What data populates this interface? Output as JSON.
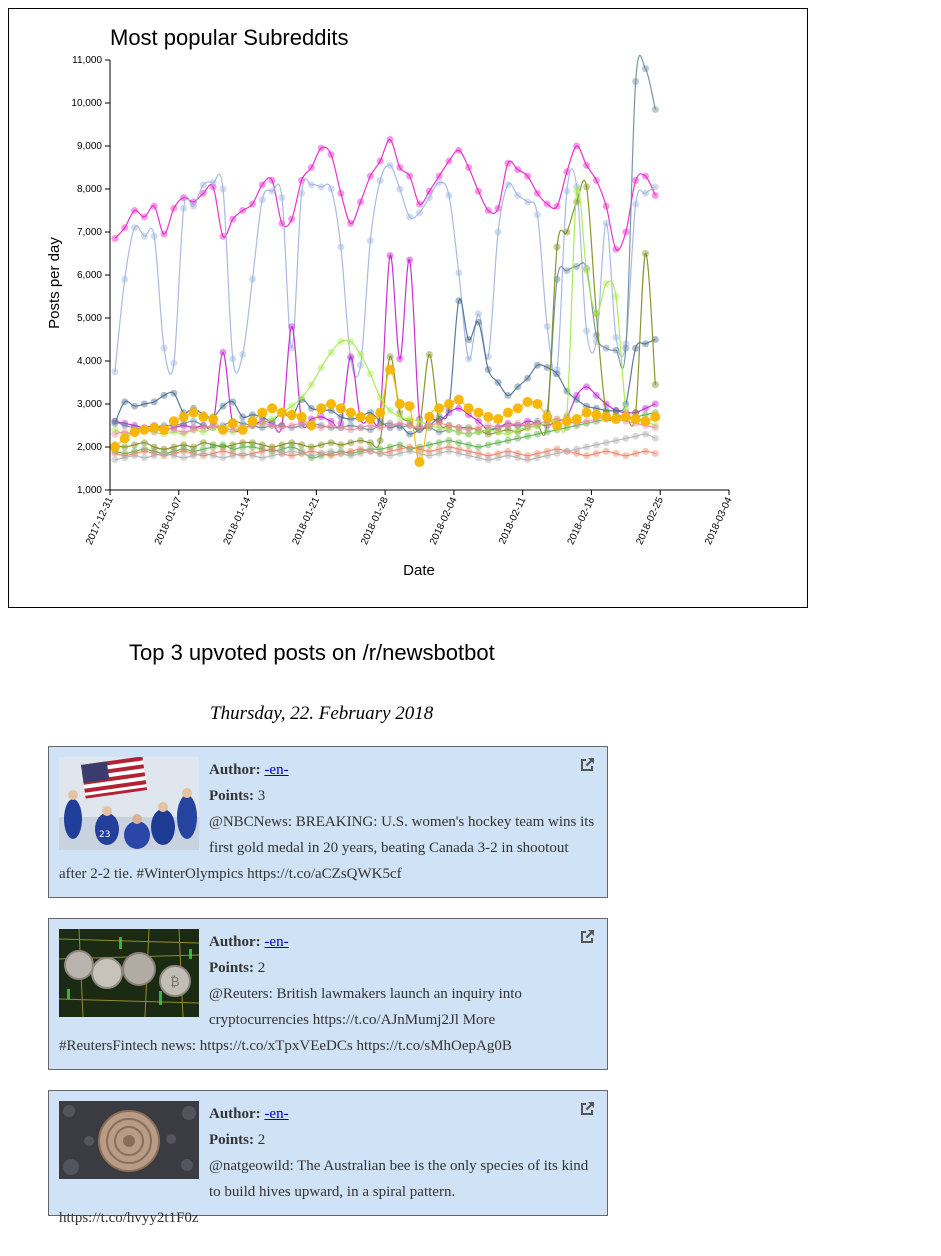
{
  "chart_data": {
    "type": "line",
    "title": "Most popular Subreddits",
    "xlabel": "Date",
    "ylabel": "Posts per day",
    "ylim": [
      1000,
      11000
    ],
    "y_ticks": [
      "1,000",
      "2,000",
      "3,000",
      "4,000",
      "5,000",
      "6,000",
      "7,000",
      "8,000",
      "9,000",
      "10,000",
      "11,000"
    ],
    "x_ticks": [
      "2017-12-31",
      "2018-01-07",
      "2018-01-14",
      "2018-01-21",
      "2018-01-28",
      "2018-02-04",
      "2018-02-11",
      "2018-02-18",
      "2018-02-25",
      "2018-03-04"
    ],
    "x_start": "2017-12-31",
    "series": [
      {
        "color": "#e81ec8",
        "values": [
          6850,
          7100,
          7500,
          7350,
          7600,
          6950,
          7550,
          7800,
          7700,
          7900,
          8050,
          6900,
          7300,
          7500,
          7650,
          8100,
          8200,
          7200,
          7300,
          8200,
          8500,
          8950,
          8800,
          7900,
          7200,
          7700,
          8300,
          8650,
          9150,
          8500,
          8300,
          7650,
          7950,
          8300,
          8650,
          8900,
          8500,
          7950,
          7500,
          7550,
          8600,
          8450,
          8300,
          7900,
          7650,
          7600,
          8400,
          9000,
          8550,
          8200,
          7600,
          6600,
          7000,
          8200,
          8300,
          7850
        ]
      },
      {
        "color": "#9eb4e0",
        "values": [
          3750,
          5900,
          7100,
          6900,
          6900,
          4300,
          3950,
          7550,
          7600,
          8100,
          8150,
          8000,
          4050,
          4150,
          5900,
          7750,
          7950,
          7800,
          4300,
          7900,
          8100,
          8050,
          8000,
          6650,
          4050,
          3900,
          6800,
          8200,
          8550,
          8000,
          7350,
          7450,
          7800,
          8150,
          7850,
          6050,
          4050,
          5100,
          4100,
          7000,
          8100,
          7850,
          7700,
          7400,
          4800,
          3800,
          7950,
          8050,
          4700,
          4450,
          7200,
          4550,
          4400,
          7650,
          7900,
          8050
        ]
      },
      {
        "color": "#c41bd0",
        "values": [
          2600,
          2550,
          2500,
          2450,
          2500,
          2400,
          2450,
          2500,
          2450,
          2500,
          2550,
          4200,
          2500,
          2450,
          2500,
          2600,
          2550,
          2500,
          4800,
          2600,
          2650,
          2700,
          2600,
          2550,
          4100,
          2650,
          2700,
          2800,
          6450,
          4050,
          6350,
          2650,
          2700,
          2600,
          2800,
          2900,
          2750,
          2600,
          2400,
          2450,
          2550,
          2500,
          2600,
          2550,
          2500,
          2600,
          2700,
          3200,
          3400,
          3200,
          3000,
          2850,
          2800,
          2800,
          2900,
          3000
        ]
      },
      {
        "color": "#4a6d90",
        "values": [
          2550,
          3050,
          2950,
          3000,
          3050,
          3200,
          3250,
          2800,
          2900,
          2750,
          2700,
          2950,
          3050,
          2700,
          2750,
          2700,
          2600,
          2800,
          2700,
          3100,
          2900,
          2850,
          2850,
          2700,
          2650,
          2700,
          2800,
          2600,
          2450,
          2500,
          2300,
          2400,
          2500,
          2700,
          2900,
          5400,
          4500,
          4900,
          3800,
          3500,
          3200,
          3400,
          3600,
          3900,
          3850,
          3700,
          3300,
          3100,
          2950,
          2900,
          2850,
          2850,
          3000,
          4300,
          4400,
          4500
        ]
      },
      {
        "color": "#6b8aa0",
        "values": [
          2600,
          2500,
          2450,
          2400,
          2450,
          2500,
          2500,
          2550,
          2600,
          2500,
          2450,
          2500,
          2600,
          2550,
          2500,
          2450,
          2500,
          2500,
          2450,
          2500,
          2550,
          2500,
          2450,
          2450,
          2500,
          2450,
          2400,
          2500,
          2550,
          2450,
          2500,
          2400,
          2450,
          2350,
          2400,
          2350,
          2300,
          2350,
          2400,
          2450,
          2500,
          2500,
          2500,
          2600,
          2800,
          5900,
          6100,
          6200,
          6150,
          4600,
          4300,
          4250,
          4300,
          10500,
          10800,
          9850
        ]
      },
      {
        "color": "#7d8a1a",
        "values": [
          2050,
          2000,
          2050,
          2100,
          2000,
          1950,
          2000,
          2050,
          2000,
          2100,
          2050,
          2000,
          2050,
          2100,
          2100,
          2050,
          2000,
          2050,
          2100,
          2050,
          2000,
          2050,
          2100,
          2050,
          2100,
          2150,
          2100,
          2150,
          4100,
          2800,
          2600,
          2500,
          4150,
          2600,
          2500,
          2450,
          2450,
          2400,
          2300,
          2350,
          2400,
          2350,
          2450,
          2500,
          2600,
          6650,
          7000,
          7700,
          8050,
          5100,
          2800,
          2750,
          2700,
          2800,
          6500,
          3450
        ]
      },
      {
        "color": "#a3e84a",
        "values": [
          2400,
          2300,
          2350,
          2400,
          2350,
          2300,
          2350,
          2300,
          2400,
          2350,
          2450,
          2400,
          2350,
          2450,
          2500,
          2550,
          2650,
          2800,
          2950,
          3150,
          3450,
          3850,
          4200,
          4450,
          4450,
          4150,
          3700,
          3150,
          2850,
          2700,
          2650,
          2600,
          2500,
          2450,
          2400,
          2350,
          2300,
          2350,
          2400,
          2350,
          2300,
          2400,
          2450,
          2500,
          2550,
          2650,
          2750,
          7950,
          6100,
          5100,
          5800,
          5500,
          2900,
          2700,
          2600,
          2500
        ]
      },
      {
        "color": "#5bb04a",
        "values": [
          1900,
          1850,
          1900,
          1950,
          1900,
          1850,
          1900,
          1950,
          1900,
          1950,
          2000,
          2050,
          1950,
          2000,
          2000,
          1950,
          1900,
          1950,
          2000,
          1900,
          1750,
          1800,
          1850,
          1900,
          1850,
          1900,
          1950,
          1950,
          2000,
          2050,
          1950,
          2000,
          2050,
          2100,
          2150,
          2100,
          2050,
          2000,
          2050,
          2100,
          2150,
          2200,
          2250,
          2300,
          2350,
          2400,
          2450,
          2500,
          2550,
          2600,
          2650,
          2700,
          2650,
          2700,
          2750,
          2800
        ]
      },
      {
        "color": "#f28aa0",
        "values": [
          2300,
          2350,
          2300,
          2400,
          2350,
          2450,
          2400,
          2350,
          2400,
          2450,
          2500,
          2450,
          2400,
          2450,
          2500,
          2550,
          2500,
          2450,
          2500,
          2550,
          2500,
          2450,
          2500,
          2450,
          2400,
          2450,
          2500,
          2450,
          2500,
          2550,
          2500,
          2450,
          2500,
          2550,
          2500,
          2450,
          2400,
          2450,
          2500,
          2450,
          2500,
          2550,
          2500,
          2550,
          2600,
          2650,
          2600,
          2550,
          2600,
          2650,
          2700,
          2650,
          2600,
          2550,
          2500,
          2450
        ]
      },
      {
        "color": "#f08060",
        "values": [
          1850,
          1800,
          1850,
          1900,
          1850,
          1800,
          1850,
          1900,
          1850,
          1800,
          1850,
          1900,
          1850,
          1800,
          1850,
          1900,
          1950,
          1850,
          1800,
          1850,
          1900,
          1850,
          1800,
          1850,
          1900,
          1950,
          1900,
          1850,
          1900,
          1950,
          2000,
          1950,
          1900,
          1950,
          2000,
          1950,
          1900,
          1850,
          1800,
          1850,
          1900,
          1850,
          1800,
          1850,
          1900,
          1950,
          1900,
          1850,
          1800,
          1850,
          1900,
          1850,
          1800,
          1850,
          1900,
          1850
        ]
      },
      {
        "color": "#b0b0b0",
        "values": [
          1700,
          1750,
          1800,
          1750,
          1800,
          1850,
          1800,
          1750,
          1800,
          1850,
          1800,
          1750,
          1800,
          1850,
          1800,
          1750,
          1800,
          1850,
          1900,
          1850,
          1800,
          1850,
          1900,
          1850,
          1800,
          1850,
          1900,
          1850,
          1800,
          1850,
          1900,
          1850,
          1800,
          1850,
          1900,
          1850,
          1800,
          1750,
          1700,
          1750,
          1800,
          1750,
          1700,
          1750,
          1800,
          1850,
          1900,
          1950,
          2000,
          2050,
          2100,
          2150,
          2200,
          2250,
          2300,
          2200
        ]
      },
      {
        "color": "#f7b500",
        "values": [
          2000,
          2200,
          2350,
          2400,
          2450,
          2400,
          2600,
          2700,
          2800,
          2700,
          2650,
          2400,
          2550,
          2400,
          2600,
          2800,
          2900,
          2800,
          2750,
          2700,
          2500,
          2900,
          3000,
          2900,
          2800,
          2700,
          2650,
          2800,
          3800,
          3000,
          2950,
          1650,
          2700,
          2900,
          3000,
          3100,
          2900,
          2800,
          2700,
          2650,
          2800,
          2900,
          3050,
          3000,
          2700,
          2500,
          2600,
          2650,
          2800,
          2750,
          2700,
          2650,
          2700,
          2650,
          2600,
          2700
        ]
      }
    ]
  },
  "posts": {
    "heading": "Top 3 upvoted posts on /r/newsbotbot",
    "date": "Thursday, 22. February 2018",
    "author_label": "Author:",
    "points_label": "Points:",
    "items": [
      {
        "author": "-en-",
        "points": "3",
        "text": "@NBCNews: BREAKING: U.S. women's hockey team wins its first gold medal in 20 years, beating Canada 3-2 in shootout after 2-2 tie. #WinterOlympics https://t.co/aCZsQWK5cf"
      },
      {
        "author": "-en-",
        "points": "2",
        "text": "@Reuters: British lawmakers launch an inquiry into cryptocurrencies https://t.co/AJnMumj2Jl More #ReutersFintech news: https://t.co/xTpxVEeDCs https://t.co/sMhOepAg0B"
      },
      {
        "author": "-en-",
        "points": "2",
        "text": "@natgeowild: The Australian bee is the only species of its kind to build hives upward, in a spiral pattern. https://t.co/hvyy2t1F0z"
      }
    ]
  }
}
